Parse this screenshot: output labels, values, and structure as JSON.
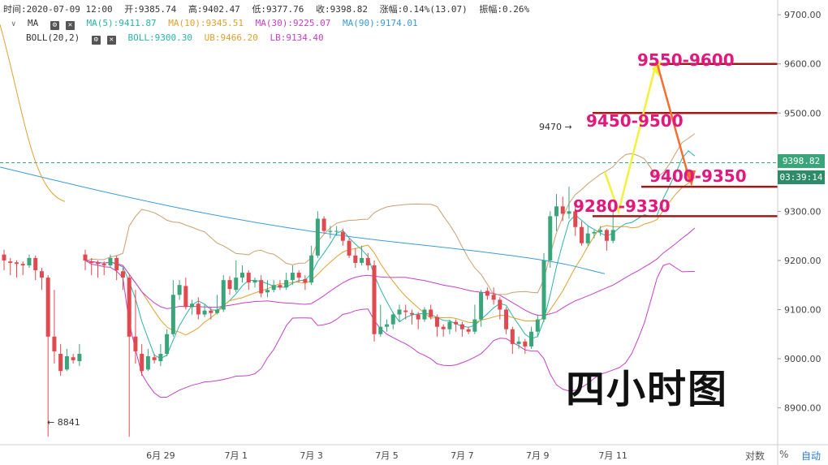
{
  "header": {
    "time_label": "时间:2020-07-09 12:00",
    "open": "开:9385.74",
    "high": "高:9402.47",
    "low": "低:9377.76",
    "close": "收:9398.82",
    "change": "涨幅:0.14%(13.07)",
    "amplitude": "振幅:0.26%",
    "ma_label": "MA",
    "ma5": "MA(5):9411.87",
    "ma10": "MA(10):9345.51",
    "ma30": "MA(30):9225.07",
    "ma90": "MA(90):9174.01",
    "boll_label": "BOLL(20,2)",
    "boll": "BOLL:9300.30",
    "ub": "UB:9466.20",
    "lb": "LB:9134.40"
  },
  "colors": {
    "up": "#3aa57a",
    "down": "#e0494f",
    "ma5": "#2ab4a8",
    "ma10": "#e0a030",
    "ma30": "#c640c6",
    "ma90": "#3a9ad9",
    "boll_upper": "#c8a070",
    "resistance": "#a01818",
    "level_text": "#e0197d",
    "arrow_yellow": "#f2f23a",
    "arrow_orange": "#f07030",
    "last_price_tag": "#3aa57a",
    "countdown_tag": "#2e8b6a"
  },
  "overlay": {
    "title": "四小时图",
    "level1": "9550-9600",
    "level2": "9450-9500",
    "level3": "9400-9350",
    "level4": "9280-9330",
    "high_note": "9470 →",
    "low_note": "← 8841"
  },
  "price_axis": {
    "last_price": "9398.82",
    "countdown": "03:39:14"
  },
  "bottom_bar": {
    "log_label": "对数",
    "pct_label": "%",
    "auto_label": "自动"
  },
  "chart_data": {
    "type": "candlestick",
    "y_ticks": [
      8900,
      9000,
      9100,
      9200,
      9300,
      9400,
      9500,
      9600,
      9700
    ],
    "y_tick_labels": [
      "8900.00",
      "9000.00",
      "9100.00",
      "9200.00",
      "9300.00",
      "9400.00",
      "9500.00",
      "9600.00",
      "9700.00"
    ],
    "ylim": [
      8825,
      9730
    ],
    "x_tick_labels": [
      "6月 29",
      "7月 1",
      "7月 3",
      "7月 5",
      "7月 7",
      "7月 9",
      "7月 11"
    ],
    "x_tick_index": [
      12,
      24,
      36,
      48,
      60,
      72,
      84
    ],
    "candles": [
      [
        9212,
        9200,
        9222,
        9180
      ],
      [
        9198,
        9195,
        9205,
        9170
      ],
      [
        9196,
        9193,
        9200,
        9165
      ],
      [
        9193,
        9190,
        9198,
        9170
      ],
      [
        9190,
        9205,
        9212,
        9185
      ],
      [
        9205,
        9180,
        9210,
        9160
      ],
      [
        9178,
        9165,
        9185,
        9140
      ],
      [
        9165,
        9045,
        9170,
        8841
      ],
      [
        9045,
        9015,
        9140,
        8990
      ],
      [
        9010,
        8975,
        9030,
        8965
      ],
      [
        8978,
        9005,
        9020,
        8975
      ],
      [
        9003,
        8997,
        9010,
        8990
      ],
      [
        8995,
        9010,
        9030,
        8985
      ],
      [
        9010,
        9050,
        9060,
        9005
      ],
      [
        9050,
        9130,
        9160,
        9045
      ],
      [
        9130,
        9150,
        9160,
        9120
      ],
      [
        9148,
        9105,
        9165,
        9100
      ],
      [
        9105,
        9112,
        9120,
        9090
      ],
      [
        9112,
        9090,
        9125,
        9080
      ],
      [
        9090,
        9098,
        9110,
        9085
      ],
      [
        9098,
        9093,
        9105,
        9080
      ],
      [
        9093,
        9100,
        9130,
        9090
      ],
      [
        9100,
        9160,
        9170,
        9095
      ],
      [
        9160,
        9142,
        9168,
        9130
      ],
      [
        9140,
        9165,
        9200,
        9135
      ],
      [
        9165,
        9175,
        9190,
        9155
      ],
      [
        9175,
        9155,
        9180,
        9140
      ],
      [
        9155,
        9160,
        9165,
        9145
      ],
      [
        9160,
        9133,
        9170,
        9125
      ],
      [
        9135,
        9140,
        9160,
        9125
      ],
      [
        9140,
        9150,
        9160,
        9135
      ],
      [
        9150,
        9145,
        9160,
        9140
      ],
      [
        9145,
        9160,
        9175,
        9140
      ],
      [
        9160,
        9175,
        9190,
        9150
      ],
      [
        9175,
        9165,
        9180,
        9155
      ],
      [
        9162,
        9155,
        9170,
        9140
      ],
      [
        9155,
        9210,
        9230,
        9150
      ],
      [
        9210,
        9285,
        9300,
        9205
      ],
      [
        9285,
        9260,
        9290,
        9255
      ],
      [
        9258,
        9260,
        9270,
        9245
      ],
      [
        9260,
        9260,
        9270,
        9250
      ],
      [
        9258,
        9240,
        9265,
        9230
      ],
      [
        9240,
        9210,
        9245,
        9205
      ],
      [
        9210,
        9195,
        9225,
        9185
      ],
      [
        9195,
        9205,
        9230,
        9190
      ],
      [
        9205,
        9190,
        9215,
        9180
      ],
      [
        9190,
        9050,
        9200,
        9035
      ],
      [
        9050,
        9065,
        9110,
        9045
      ],
      [
        9065,
        9070,
        9080,
        9055
      ],
      [
        9070,
        9090,
        9095,
        9060
      ],
      [
        9090,
        9100,
        9110,
        9075
      ],
      [
        9098,
        9095,
        9110,
        9080
      ],
      [
        9093,
        9090,
        9100,
        9070
      ],
      [
        9090,
        9080,
        9095,
        9060
      ],
      [
        9080,
        9100,
        9105,
        9075
      ],
      [
        9100,
        9085,
        9110,
        9080
      ],
      [
        9085,
        9065,
        9090,
        9045
      ],
      [
        9065,
        9060,
        9070,
        9045
      ],
      [
        9060,
        9075,
        9080,
        9050
      ],
      [
        9075,
        9070,
        9080,
        9055
      ],
      [
        9070,
        9060,
        9075,
        9045
      ],
      [
        9060,
        9055,
        9065,
        9050
      ],
      [
        9055,
        9080,
        9110,
        9050
      ],
      [
        9080,
        9135,
        9140,
        9065
      ],
      [
        9138,
        9128,
        9145,
        9120
      ],
      [
        9130,
        9120,
        9145,
        9110
      ],
      [
        9120,
        9100,
        9125,
        9080
      ],
      [
        9100,
        9060,
        9105,
        9050
      ],
      [
        9060,
        9030,
        9065,
        9010
      ],
      [
        9030,
        9035,
        9045,
        9020
      ],
      [
        9035,
        9025,
        9040,
        9010
      ],
      [
        9025,
        9055,
        9065,
        9020
      ],
      [
        9055,
        9080,
        9090,
        9045
      ],
      [
        9080,
        9200,
        9215,
        9075
      ],
      [
        9200,
        9290,
        9300,
        9185
      ],
      [
        9290,
        9310,
        9335,
        9260
      ],
      [
        9310,
        9295,
        9330,
        9280
      ],
      [
        9295,
        9300,
        9350,
        9285
      ],
      [
        9300,
        9268,
        9310,
        9250
      ],
      [
        9268,
        9235,
        9280,
        9230
      ],
      [
        9235,
        9255,
        9270,
        9230
      ],
      [
        9255,
        9258,
        9262,
        9245
      ],
      [
        9258,
        9262,
        9270,
        9250
      ],
      [
        9262,
        9240,
        9265,
        9220
      ],
      [
        9240,
        9262,
        9300,
        9235
      ],
      [
        9262,
        9310,
        9320,
        9255
      ],
      [
        9310,
        9300,
        9320,
        9280
      ],
      [
        9298,
        9275,
        9305,
        9265
      ],
      [
        9275,
        9280,
        9290,
        9265
      ],
      [
        9280,
        9300,
        9320,
        9275
      ],
      [
        9300,
        9290,
        9305,
        9270
      ],
      [
        9290,
        9310,
        9320,
        9280
      ],
      [
        9310,
        9450,
        9470,
        9300
      ],
      [
        9450,
        9410,
        9455,
        9395
      ],
      [
        9410,
        9430,
        9440,
        9400
      ],
      [
        9430,
        9440,
        9445,
        9420
      ],
      [
        9440,
        9385,
        9445,
        9360
      ],
      [
        9385,
        9398,
        9402,
        9377
      ]
    ],
    "resistance_lines": [
      9600,
      9500,
      9350,
      9290
    ],
    "annotations": [
      "9550-9600",
      "9450-9500",
      "9400-9350",
      "9280-9330",
      "9470",
      "8841"
    ]
  }
}
